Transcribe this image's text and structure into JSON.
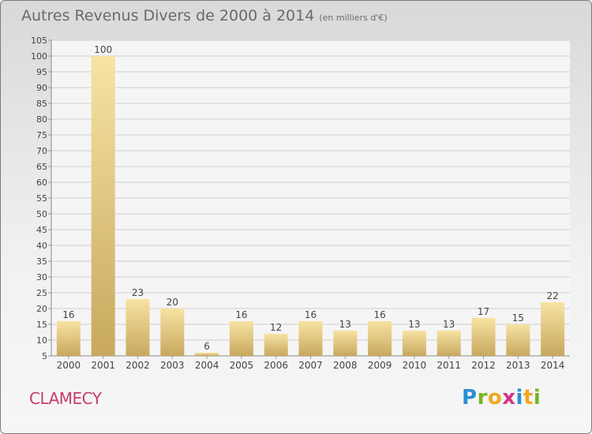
{
  "header": {
    "title": "Autres Revenus Divers de 2000 à 2014",
    "subtitle": "(en milliers d'€)"
  },
  "commune": "CLAMECY",
  "logo": {
    "letters": [
      "P",
      "r",
      "o",
      "x",
      "i",
      "t",
      "i"
    ],
    "colors": [
      "#2b8fd6",
      "#7ab321",
      "#f0a81f",
      "#d63384",
      "#2b8fd6",
      "#f0a81f",
      "#7ab321"
    ]
  },
  "colors": {
    "bar_light": "#f7e3a3",
    "bar_dark": "#c8a85e",
    "grid": "#cfcfcf",
    "text": "#444444"
  },
  "chart_data": {
    "type": "bar",
    "title": "Autres Revenus Divers de 2000 à 2014",
    "subtitle": "(en milliers d'€)",
    "categories": [
      "2000",
      "2001",
      "2002",
      "2003",
      "2004",
      "2005",
      "2006",
      "2007",
      "2008",
      "2009",
      "2010",
      "2011",
      "2012",
      "2013",
      "2014"
    ],
    "values": [
      16,
      100,
      23,
      20,
      6,
      16,
      12,
      16,
      13,
      16,
      13,
      13,
      17,
      15,
      22
    ],
    "ylim": [
      5,
      105
    ],
    "yticks": [
      5,
      10,
      15,
      20,
      25,
      30,
      35,
      40,
      45,
      50,
      55,
      60,
      65,
      70,
      75,
      80,
      85,
      90,
      95,
      100,
      105
    ],
    "grid": true,
    "data_labels": true
  }
}
